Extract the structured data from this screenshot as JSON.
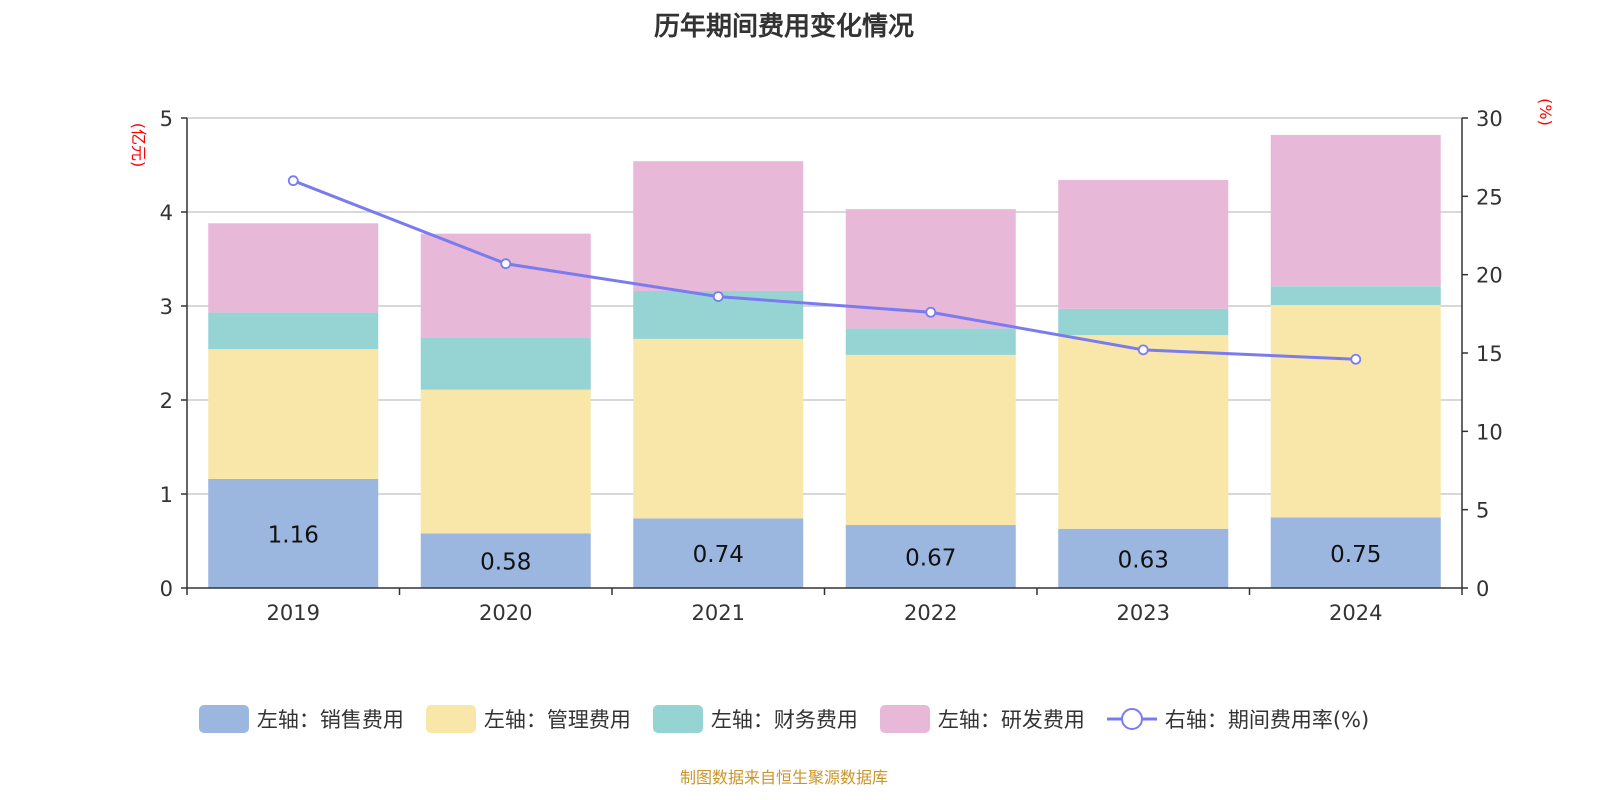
{
  "chart_data": {
    "type": "bar",
    "title": "历年期间费用变化情况",
    "categories": [
      "2019",
      "2020",
      "2021",
      "2022",
      "2023",
      "2024"
    ],
    "y_left": {
      "unit_label": "(亿元)",
      "range": [
        0,
        5
      ],
      "ticks": [
        0,
        1,
        2,
        3,
        4,
        5
      ]
    },
    "y_right": {
      "unit_label": "(%)",
      "range": [
        0,
        30
      ],
      "ticks": [
        0,
        5,
        10,
        15,
        20,
        25,
        30
      ]
    },
    "grid": true,
    "legend_placement": "bottom",
    "stacked": true,
    "series": [
      {
        "name": "左轴：销售费用",
        "axis": "left",
        "color": "#9bb7e0",
        "values": [
          1.16,
          0.58,
          0.74,
          0.67,
          0.63,
          0.75
        ],
        "show_labels": true
      },
      {
        "name": "左轴：管理费用",
        "axis": "left",
        "color": "#f8e7a8",
        "values": [
          1.38,
          1.53,
          1.91,
          1.81,
          2.06,
          2.26
        ]
      },
      {
        "name": "左轴：财务费用",
        "axis": "left",
        "color": "#96d4d4",
        "values": [
          0.39,
          0.55,
          0.51,
          0.28,
          0.28,
          0.2
        ]
      },
      {
        "name": "左轴：研发费用",
        "axis": "left",
        "color": "#e7b8d7",
        "values": [
          0.95,
          1.11,
          1.38,
          1.27,
          1.37,
          1.61
        ]
      },
      {
        "name": "右轴：期间费用率(%)",
        "axis": "right",
        "type": "line",
        "color": "#7b7bf0",
        "values": [
          26.0,
          20.7,
          18.6,
          17.6,
          15.2,
          14.6
        ]
      }
    ]
  },
  "source": "制图数据来自恒生聚源数据库"
}
